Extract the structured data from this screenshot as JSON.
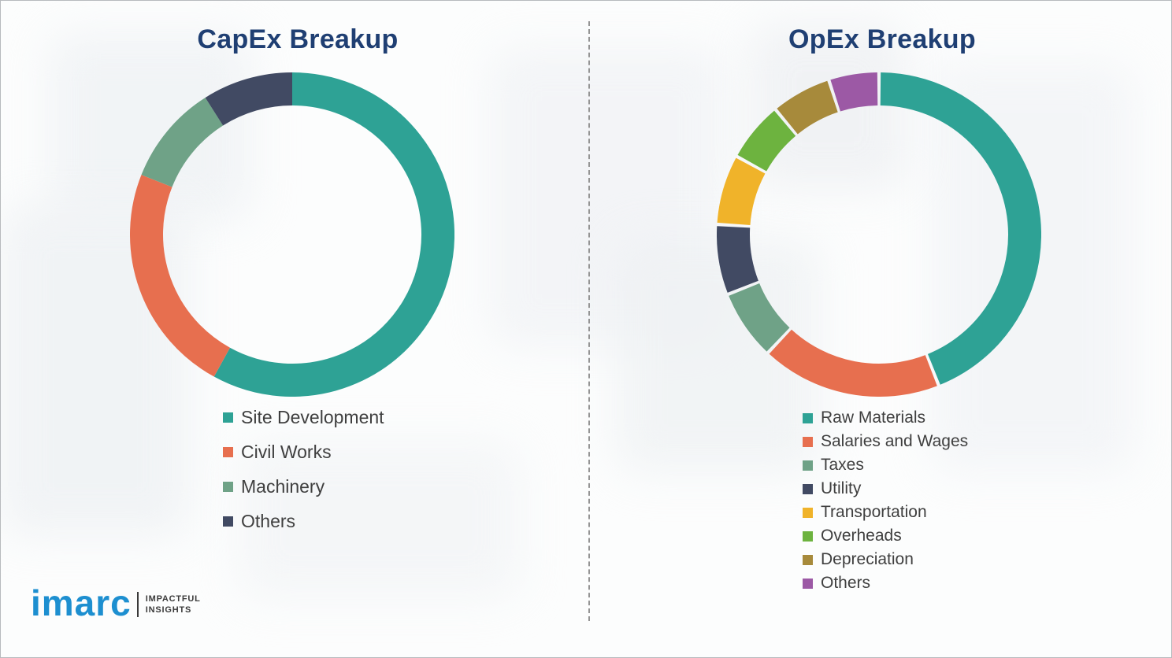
{
  "colors": {
    "title": "#1f3f73",
    "legend_text": "#3f3f3f",
    "divider": "#949494"
  },
  "chart_data": [
    {
      "type": "pie",
      "donut": true,
      "title": "CapEx Breakup",
      "categories": [
        "Site Development",
        "Civil Works",
        "Machinery",
        "Others"
      ],
      "values": [
        58,
        23,
        10,
        9
      ],
      "units": "% (estimated from arc lengths; no numeric labels shown)",
      "colors": [
        "#2ea295",
        "#e76f4f",
        "#6fa287",
        "#414a63"
      ],
      "legend_position": "below-left",
      "start_angle": "top",
      "direction": "clockwise"
    },
    {
      "type": "pie",
      "donut": true,
      "title": "OpEx Breakup",
      "categories": [
        "Raw Materials",
        "Salaries and Wages",
        "Taxes",
        "Utility",
        "Transportation",
        "Overheads",
        "Depreciation",
        "Others"
      ],
      "values": [
        44,
        18,
        7,
        7,
        7,
        6,
        6,
        5
      ],
      "units": "% (estimated from arc lengths; no numeric labels shown)",
      "colors": [
        "#2ea295",
        "#e76f4f",
        "#6fa287",
        "#414a63",
        "#f0b32a",
        "#6db33f",
        "#a78a3b",
        "#9c59a5"
      ],
      "legend_position": "below-left",
      "start_angle": "top",
      "direction": "clockwise"
    }
  ],
  "logo": {
    "brand": "imarc",
    "brand_color": "#1d8fd0",
    "tagline_line1": "IMPACTFUL",
    "tagline_line2": "INSIGHTS"
  }
}
